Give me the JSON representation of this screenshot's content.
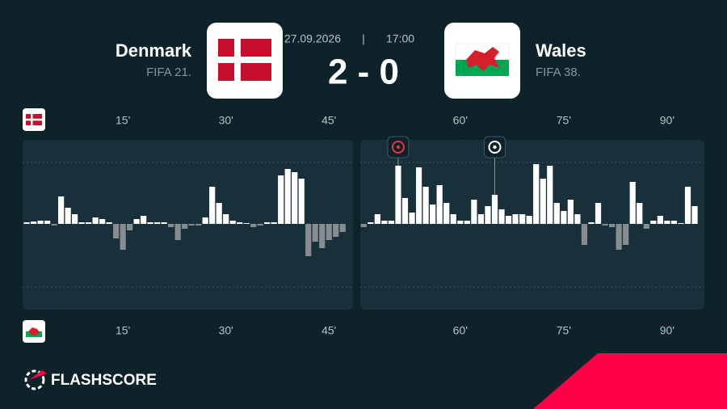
{
  "header": {
    "home_name": "Denmark",
    "home_rank": "FIFA 21.",
    "away_name": "Wales",
    "away_rank": "FIFA 38.",
    "date": "27.09.2026",
    "time": "17:00",
    "score": "2 - 0"
  },
  "brand": "FLASHSCORE",
  "chart_data": [
    {
      "type": "bar",
      "x": [
        1,
        2,
        3,
        4,
        5,
        6,
        7,
        8,
        9,
        10,
        11,
        12,
        13,
        14,
        15,
        16,
        17,
        18,
        19,
        20,
        21,
        22,
        23,
        24,
        25,
        26,
        27,
        28,
        29,
        30,
        31,
        32,
        33,
        34,
        35,
        36,
        37,
        38,
        39,
        40,
        41,
        42,
        43,
        44,
        45,
        46,
        47
      ],
      "values": [
        2,
        3,
        4,
        4,
        -2,
        34,
        20,
        12,
        2,
        2,
        8,
        6,
        2,
        -18,
        -32,
        -8,
        6,
        10,
        2,
        2,
        2,
        -4,
        -20,
        -6,
        -2,
        -2,
        8,
        46,
        26,
        12,
        4,
        2,
        1,
        -4,
        -2,
        2,
        2,
        60,
        68,
        64,
        56,
        -40,
        -22,
        -30,
        -20,
        -16,
        -10
      ],
      "xlim": [
        0.4,
        48.5
      ],
      "ylim": [
        -106,
        104
      ],
      "xticks": [
        {
          "value": 15,
          "label": "15'"
        },
        {
          "value": 30,
          "label": "30'"
        },
        {
          "value": 45,
          "label": "45'"
        }
      ],
      "positive_color": "#ffffff",
      "negative_color": "#868c90"
    },
    {
      "type": "bar",
      "x": [
        46,
        47,
        48,
        49,
        50,
        51,
        52,
        53,
        54,
        55,
        56,
        57,
        58,
        59,
        60,
        61,
        62,
        63,
        64,
        65,
        66,
        67,
        68,
        69,
        70,
        71,
        72,
        73,
        74,
        75,
        76,
        77,
        78,
        79,
        80,
        81,
        82,
        83,
        84,
        85,
        86,
        87,
        88,
        89,
        90,
        91,
        92,
        93,
        94
      ],
      "values": [
        -4,
        2,
        12,
        4,
        4,
        72,
        32,
        14,
        70,
        46,
        24,
        48,
        26,
        12,
        4,
        4,
        30,
        12,
        22,
        36,
        18,
        10,
        12,
        12,
        10,
        74,
        56,
        72,
        26,
        16,
        30,
        12,
        -26,
        2,
        26,
        -2,
        -4,
        -32,
        -26,
        52,
        26,
        -6,
        4,
        10,
        4,
        4,
        1,
        46,
        22
      ],
      "xlim": [
        45.5,
        95.4
      ],
      "ylim": [
        -106,
        104
      ],
      "xticks": [
        {
          "value": 60,
          "label": "60'"
        },
        {
          "value": 75,
          "label": "75'"
        },
        {
          "value": 90,
          "label": "90'"
        }
      ],
      "goals": [
        51,
        65
      ],
      "goal_colors": [
        "#e8343f",
        "#ffffff"
      ],
      "positive_color": "#ffffff",
      "negative_color": "#868c90"
    }
  ]
}
